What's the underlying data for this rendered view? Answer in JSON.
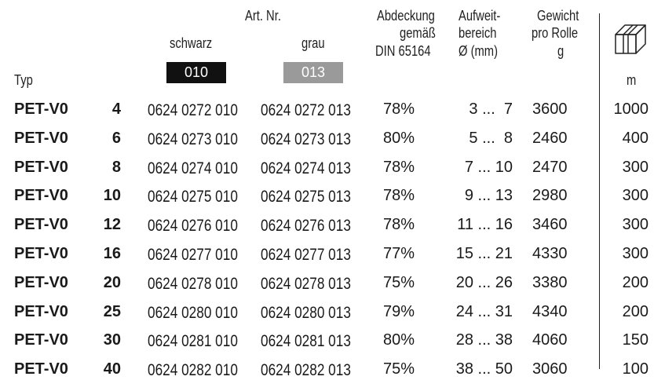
{
  "header": {
    "typ": "Typ",
    "art_nr": "Art. Nr.",
    "schwarz": "schwarz",
    "grau": "grau",
    "code_schwarz": "010",
    "code_grau": "013",
    "abdeckung_l1": "Abdeckung",
    "abdeckung_l2": "gemäß",
    "abdeckung_l3": "DIN 65164",
    "aufweit_l1": "Aufweit-",
    "aufweit_l2": "bereich",
    "aufweit_l3": "Ø (mm)",
    "gewicht_l1": "Gewicht",
    "gewicht_l2": "pro Rolle",
    "gewicht_l3": "g",
    "length_unit": "m",
    "box_icon": "box-icon"
  },
  "colors": {
    "schwarz_swatch": "#111111",
    "grau_swatch": "#9a9a9a"
  },
  "rows": [
    {
      "typ": "PET-V0",
      "num": "4",
      "art_schwarz": "0624 0272 010",
      "art_grau": "0624 0272 013",
      "abdeckung": "78%",
      "bereich": "3 ...  7",
      "gewicht": "3600",
      "m": "1000"
    },
    {
      "typ": "PET-V0",
      "num": "6",
      "art_schwarz": "0624 0273 010",
      "art_grau": "0624 0273 013",
      "abdeckung": "80%",
      "bereich": "5 ...  8",
      "gewicht": "2460",
      "m": "400"
    },
    {
      "typ": "PET-V0",
      "num": "8",
      "art_schwarz": "0624 0274 010",
      "art_grau": "0624 0274 013",
      "abdeckung": "78%",
      "bereich": "7 ... 10",
      "gewicht": "2470",
      "m": "300"
    },
    {
      "typ": "PET-V0",
      "num": "10",
      "art_schwarz": "0624 0275 010",
      "art_grau": "0624 0275 013",
      "abdeckung": "78%",
      "bereich": "9 ... 13",
      "gewicht": "2980",
      "m": "300"
    },
    {
      "typ": "PET-V0",
      "num": "12",
      "art_schwarz": "0624 0276 010",
      "art_grau": "0624 0276 013",
      "abdeckung": "78%",
      "bereich": "11 ... 16",
      "gewicht": "3460",
      "m": "300"
    },
    {
      "typ": "PET-V0",
      "num": "16",
      "art_schwarz": "0624 0277 010",
      "art_grau": "0624 0277 013",
      "abdeckung": "77%",
      "bereich": "15 ... 21",
      "gewicht": "4330",
      "m": "300"
    },
    {
      "typ": "PET-V0",
      "num": "20",
      "art_schwarz": "0624 0278 010",
      "art_grau": "0624 0278 013",
      "abdeckung": "75%",
      "bereich": "20 ... 26",
      "gewicht": "3380",
      "m": "200"
    },
    {
      "typ": "PET-V0",
      "num": "25",
      "art_schwarz": "0624 0280 010",
      "art_grau": "0624 0280 013",
      "abdeckung": "79%",
      "bereich": "24 ... 31",
      "gewicht": "4340",
      "m": "200"
    },
    {
      "typ": "PET-V0",
      "num": "30",
      "art_schwarz": "0624 0281 010",
      "art_grau": "0624 0281 013",
      "abdeckung": "80%",
      "bereich": "28 ... 38",
      "gewicht": "4060",
      "m": "150"
    },
    {
      "typ": "PET-V0",
      "num": "40",
      "art_schwarz": "0624 0282 010",
      "art_grau": "0624 0282 013",
      "abdeckung": "75%",
      "bereich": "38 ... 50",
      "gewicht": "3060",
      "m": "100"
    }
  ]
}
